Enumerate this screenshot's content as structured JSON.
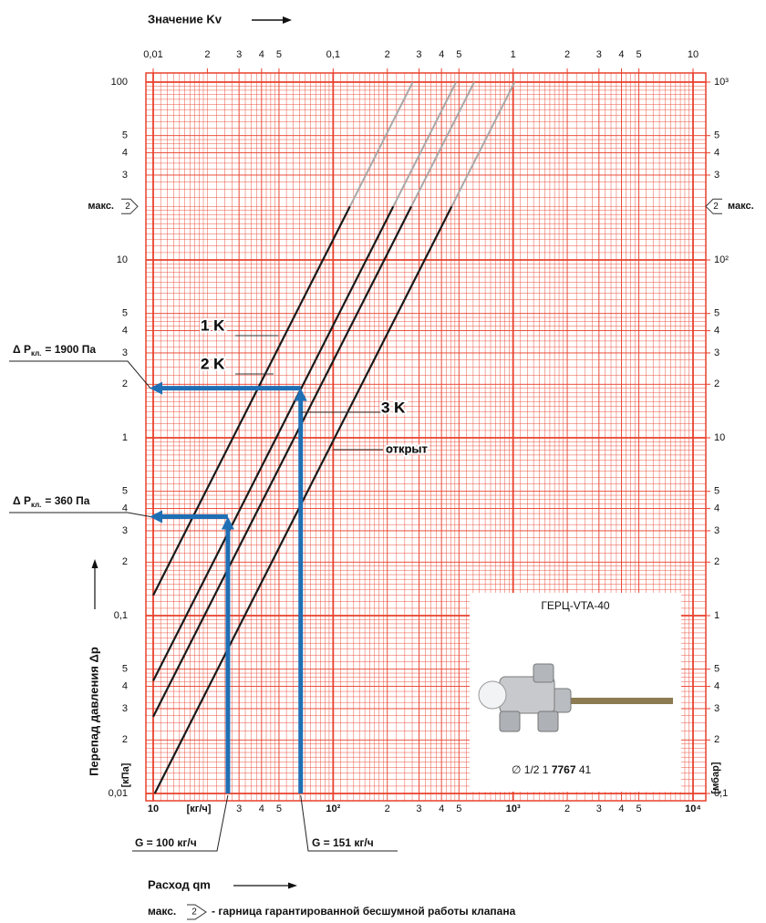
{
  "chart_data": {
    "type": "line",
    "title": "Значение Kv",
    "xlabel": "Расход qm",
    "ylabel": "Перепад давления Δp",
    "x_unit": "[кг/ч]",
    "y_unit": "[кПа]",
    "y2_unit": "[мбар]",
    "log_x": true,
    "log_y": true,
    "grid": true,
    "grid_color": "#e8412c",
    "xlim": [
      10,
      10000
    ],
    "xticks": [
      10,
      {
        "value": 30,
        "label": "3"
      },
      {
        "value": 40,
        "label": "4"
      },
      {
        "value": 50,
        "label": "5"
      },
      {
        "value": 100,
        "label": "10²"
      },
      {
        "value": 200,
        "label": "2"
      },
      {
        "value": 300,
        "label": "3"
      },
      {
        "value": 400,
        "label": "4"
      },
      {
        "value": 500,
        "label": "5"
      },
      {
        "value": 1000,
        "label": "10³"
      },
      {
        "value": 2000,
        "label": "2"
      },
      {
        "value": 3000,
        "label": "3"
      },
      {
        "value": 4000,
        "label": "4"
      },
      {
        "value": 5000,
        "label": "5"
      },
      {
        "value": 10000,
        "label": "10⁴"
      }
    ],
    "x2lim": [
      0.01,
      10
    ],
    "x2ticks": [
      {
        "value": 0.01,
        "label": "0,01"
      },
      {
        "value": 0.02,
        "label": "2"
      },
      {
        "value": 0.03,
        "label": "3"
      },
      {
        "value": 0.04,
        "label": "4"
      },
      {
        "value": 0.05,
        "label": "5"
      },
      {
        "value": 0.1,
        "label": "0,1"
      },
      {
        "value": 0.2,
        "label": "2"
      },
      {
        "value": 0.3,
        "label": "3"
      },
      {
        "value": 0.4,
        "label": "4"
      },
      {
        "value": 0.5,
        "label": "5"
      },
      1,
      2,
      3,
      4,
      5,
      10
    ],
    "ylim": [
      0.01,
      100
    ],
    "yticks": [
      100,
      {
        "value": 50,
        "label": "5"
      },
      {
        "value": 40,
        "label": "4"
      },
      {
        "value": 30,
        "label": "3"
      },
      10,
      5,
      4,
      3,
      2,
      1,
      {
        "value": 0.5,
        "label": "5"
      },
      {
        "value": 0.4,
        "label": "4"
      },
      {
        "value": 0.3,
        "label": "3"
      },
      {
        "value": 0.2,
        "label": "2"
      },
      {
        "value": 0.1,
        "label": "0,1"
      },
      {
        "value": 0.05,
        "label": "5"
      },
      {
        "value": 0.04,
        "label": "4"
      },
      {
        "value": 0.03,
        "label": "3"
      },
      {
        "value": 0.02,
        "label": "2"
      },
      {
        "value": 0.01,
        "label": "0,01"
      }
    ],
    "y2lim": [
      0.1,
      1000
    ],
    "y2ticks": [
      {
        "value": 1000,
        "label": "10³"
      },
      {
        "value": 500,
        "label": "5"
      },
      {
        "value": 400,
        "label": "4"
      },
      {
        "value": 300,
        "label": "3"
      },
      {
        "value": 100,
        "label": "10²"
      },
      {
        "value": 50,
        "label": "5"
      },
      {
        "value": 40,
        "label": "4"
      },
      {
        "value": 30,
        "label": "3"
      },
      {
        "value": 20,
        "label": "2"
      },
      10,
      5,
      4,
      3,
      2,
      1,
      {
        "value": 0.5,
        "label": "5"
      },
      {
        "value": 0.4,
        "label": "4"
      },
      {
        "value": 0.3,
        "label": "3"
      },
      {
        "value": 0.2,
        "label": "2"
      },
      {
        "value": 0.1,
        "label": "0,1"
      }
    ],
    "line_color": "#1a1a1a",
    "extension_color": "#a8a8a8",
    "series": [
      {
        "name": "1 K",
        "x": [
          10,
          124,
          277
        ],
        "values": [
          0.13,
          20,
          100
        ]
      },
      {
        "name": "2 K",
        "x": [
          10,
          216,
          482
        ],
        "values": [
          0.043,
          20,
          100
        ]
      },
      {
        "name": "3 K",
        "x": [
          10,
          272,
          608
        ],
        "values": [
          0.027,
          20,
          100
        ]
      },
      {
        "name": "открыт",
        "x": [
          10.2,
          456,
          1020
        ],
        "values": [
          0.01,
          20,
          100
        ]
      }
    ],
    "max_marker": {
      "label": "макс.",
      "icon": "2",
      "value": 20
    },
    "guide_color": "#1f6fb5",
    "guides": [
      {
        "x": 66,
        "y": 1.9,
        "dp_prefix": "Δ P",
        "dp_sub": "кл.",
        "dp_rest": "= 1900 Па",
        "g_label": "G = 151 кг/ч"
      },
      {
        "x": 26,
        "y": 0.36,
        "dp_prefix": "Δ P",
        "dp_sub": "кл.",
        "dp_rest": "= 360 Па",
        "g_label": "G = 100 кг/ч"
      }
    ],
    "inset": {
      "title": "ГЕРЦ-VTA-40",
      "code_prefix": "∅ 1/2  1",
      "code_bold": "7767",
      "code_suffix": "41"
    },
    "footnote": {
      "label": "макс.",
      "icon": "2",
      "text": "- гарница гарантированной бесшумной работы клапана"
    }
  }
}
